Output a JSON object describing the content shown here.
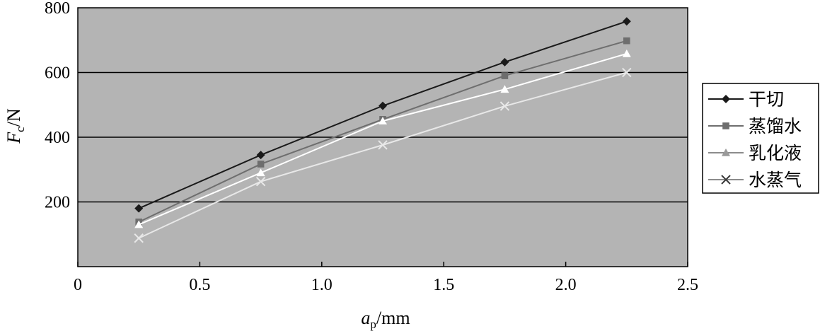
{
  "chart_data": {
    "type": "line",
    "title": "",
    "x": [
      0.25,
      0.75,
      1.25,
      1.75,
      2.25
    ],
    "xlim": [
      0,
      2.5
    ],
    "ylim": [
      0,
      800
    ],
    "xticks": [
      {
        "value": 0,
        "label": "0"
      },
      {
        "value": 0.5,
        "label": "0.5"
      },
      {
        "value": 1.0,
        "label": "1.0"
      },
      {
        "value": 1.5,
        "label": "1.5"
      },
      {
        "value": 2.0,
        "label": "2.0"
      },
      {
        "value": 2.5,
        "label": "2.5"
      }
    ],
    "yticks": [
      {
        "value": 200,
        "label": "200"
      },
      {
        "value": 400,
        "label": "400"
      },
      {
        "value": 600,
        "label": "600"
      },
      {
        "value": 800,
        "label": "800"
      }
    ],
    "xlabel": {
      "main": "a",
      "sub": "p",
      "unit": "/mm"
    },
    "ylabel": {
      "main": "F",
      "sub": "c",
      "unit": "/N"
    },
    "gridlines": "horizontal",
    "legend_position": "right",
    "plot_background": "#b4b4b4",
    "series": [
      {
        "name": "干切",
        "marker": "diamond",
        "color": "#1a1a1a",
        "values": [
          180,
          345,
          497,
          632,
          758
        ]
      },
      {
        "name": "蒸馏水",
        "marker": "square",
        "color": "#6e6e6e",
        "values": [
          138,
          317,
          455,
          590,
          698
        ]
      },
      {
        "name": "乳化液",
        "marker": "triangle",
        "color": "#ffffff",
        "values": [
          130,
          290,
          450,
          548,
          658
        ]
      },
      {
        "name": "水蒸气",
        "marker": "x",
        "color": "#e8e8e8",
        "values": [
          88,
          263,
          376,
          496,
          600
        ]
      }
    ]
  }
}
